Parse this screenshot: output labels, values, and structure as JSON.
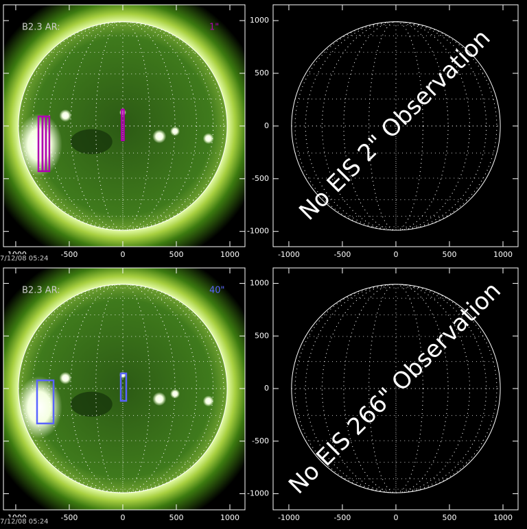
{
  "chart_data": [
    {
      "type": "image",
      "annotation": "B2.3 AR:",
      "label": "1\"",
      "label_color": "#b000b0",
      "timestamp": "7/12/08 05:24",
      "xlim": [
        -1115,
        1141
      ],
      "ylim": [
        -1145,
        1150
      ],
      "xticks": [
        -1000,
        -500,
        0,
        500,
        1000
      ],
      "yticks": [
        -1000,
        -500,
        0,
        500,
        1000
      ],
      "raster_color": "#b000b0",
      "rasters": [
        {
          "x": [
            -788,
            -750
          ],
          "y": [
            -429,
            91
          ]
        },
        {
          "x": [
            -750,
            -718
          ],
          "y": [
            -429,
            91
          ]
        },
        {
          "x": [
            -718,
            -686
          ],
          "y": [
            -429,
            91
          ]
        },
        {
          "x": [
            -10,
            10
          ],
          "y": [
            -136,
            156
          ]
        }
      ]
    },
    {
      "type": "blank",
      "text": "No EIS 2\" Observation",
      "xlim": [
        -1147,
        1141
      ],
      "ylim": [
        -1145,
        1150
      ],
      "xticks": [
        -1000,
        -500,
        0,
        500,
        1000
      ],
      "yticks": [
        -1000,
        -500,
        0,
        500,
        1000
      ]
    },
    {
      "type": "image",
      "annotation": "B2.3 AR:",
      "label": "40\"",
      "label_color": "#5a64ff",
      "timestamp": "7/12/08 05:24",
      "xlim": [
        -1115,
        1141
      ],
      "ylim": [
        -1153,
        1147
      ],
      "xticks": [
        -1000,
        -500,
        0,
        500,
        1000
      ],
      "yticks": [
        -1000,
        -500,
        0,
        500,
        1000
      ],
      "raster_color": "#5a64ff",
      "rasters": [
        {
          "x": [
            -801,
            -647
          ],
          "y": [
            -332,
            78
          ]
        },
        {
          "x": [
            -19,
            32
          ],
          "y": [
            -117,
            144
          ]
        }
      ]
    },
    {
      "type": "blank",
      "text": "No EIS 266\" Observation",
      "xlim": [
        -1147,
        1141
      ],
      "ylim": [
        -1153,
        1147
      ],
      "xticks": [
        -1000,
        -500,
        0,
        500,
        1000
      ],
      "yticks": [
        -1000,
        -500,
        0,
        500,
        1000
      ]
    }
  ]
}
